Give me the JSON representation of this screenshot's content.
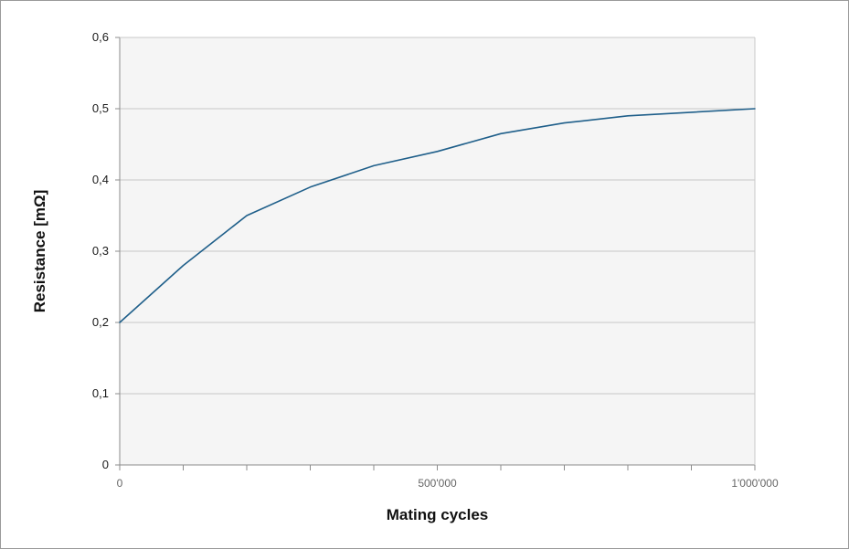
{
  "chart_data": {
    "type": "line",
    "title": "",
    "xlabel": "Mating cycles",
    "ylabel": "Resistance [mΩ]",
    "xlim": [
      0,
      1000000
    ],
    "ylim": [
      0,
      0.6
    ],
    "grid": true,
    "legend": "none",
    "x_ticks": [
      {
        "value": 0,
        "label": "0"
      },
      {
        "value": 500000,
        "label": "500'000"
      },
      {
        "value": 1000000,
        "label": "1'000'000"
      }
    ],
    "x_minor_ticks": [
      100000,
      200000,
      300000,
      400000,
      600000,
      700000,
      800000,
      900000
    ],
    "y_ticks": [
      {
        "value": 0,
        "label": "0"
      },
      {
        "value": 0.1,
        "label": "0,1"
      },
      {
        "value": 0.2,
        "label": "0,2"
      },
      {
        "value": 0.3,
        "label": "0,3"
      },
      {
        "value": 0.4,
        "label": "0,4"
      },
      {
        "value": 0.5,
        "label": "0,5"
      },
      {
        "value": 0.6,
        "label": "0,6"
      }
    ],
    "series": [
      {
        "x": [
          0,
          100000,
          200000,
          300000,
          400000,
          500000,
          600000,
          700000,
          800000,
          900000,
          1000000
        ],
        "y": [
          0.2,
          0.28,
          0.35,
          0.39,
          0.42,
          0.44,
          0.465,
          0.48,
          0.49,
          0.495,
          0.5
        ],
        "color": "#1f5f8a"
      }
    ],
    "colors": {
      "plot_background": "#f5f5f5",
      "gridline": "#c8c8c8",
      "axis_line": "#8c8c8c"
    }
  }
}
